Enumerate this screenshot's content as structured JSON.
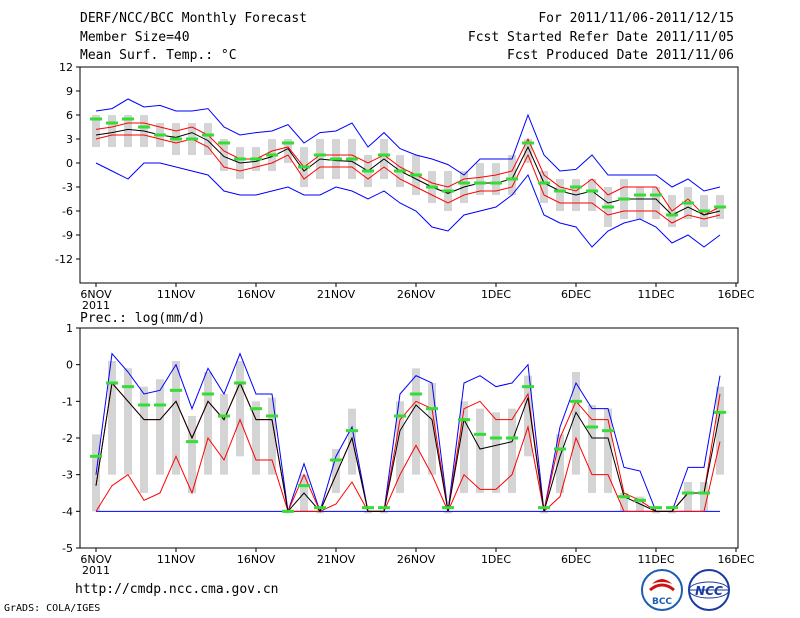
{
  "header": {
    "title": "DERF/NCC/BCC Monthly Forecast",
    "member_size": "Member Size=40",
    "variable": "Mean Surf. Temp.: °C",
    "period": "For 2011/11/06-2011/12/15",
    "started": "Fcst Started Refer Date 2011/11/05",
    "produced": "Fcst Produced Date 2011/11/06"
  },
  "footer": {
    "url": "http://cmdp.ncc.cma.gov.cn",
    "grads": "GrADS: COLA/IGES",
    "logo_bcc": "BCC",
    "logo_ncc": "NCC"
  },
  "colors": {
    "envelope": "#0000ff",
    "spread": "#ff0000",
    "mean": "#000000",
    "median": "#33dd33",
    "box": "#d4d4d4"
  },
  "chart_data": [
    {
      "type": "box",
      "title": "Mean Surf. Temp.: °C",
      "year_label": "2011",
      "x_tick_labels": [
        "6NOV",
        "11NOV",
        "16NOV",
        "21NOV",
        "26NOV",
        "1DEC",
        "6DEC",
        "11DEC",
        "16DEC"
      ],
      "x_tick_days": [
        0,
        5,
        10,
        15,
        20,
        25,
        30,
        35,
        40
      ],
      "ylim": [
        -15,
        12
      ],
      "y_ticks": [
        -12,
        -9,
        -6,
        -3,
        0,
        3,
        6,
        9,
        12
      ],
      "days": [
        0,
        1,
        2,
        3,
        4,
        5,
        6,
        7,
        8,
        9,
        10,
        11,
        12,
        13,
        14,
        15,
        16,
        17,
        18,
        19,
        20,
        21,
        22,
        23,
        24,
        25,
        26,
        27,
        28,
        29,
        30,
        31,
        32,
        33,
        34,
        35,
        36,
        37,
        38,
        39
      ],
      "series": [
        {
          "name": "max",
          "values": [
            6.5,
            6.8,
            8,
            7,
            7.2,
            6.5,
            6.5,
            6.8,
            4.5,
            3.5,
            3.8,
            4,
            4.8,
            2.5,
            3.8,
            4,
            5,
            2,
            3.8,
            1.8,
            1,
            0.5,
            -0.2,
            -1.5,
            0.5,
            0.5,
            0.5,
            6,
            1,
            -1,
            -0.8,
            1,
            -1.5,
            -1.5,
            -1.5,
            -1.5,
            -3,
            -2,
            -3.5,
            -3
          ]
        },
        {
          "name": "upper",
          "values": [
            4.2,
            4.5,
            5,
            5,
            4.5,
            4,
            4.5,
            3.5,
            1.5,
            0.5,
            0.5,
            1.5,
            2,
            -0.5,
            1,
            1,
            1,
            0,
            1,
            -0.5,
            -1.5,
            -2.5,
            -3,
            -2,
            -1.8,
            -1.5,
            -1,
            3,
            -1.5,
            -3,
            -3.5,
            -2,
            -4,
            -3,
            -3,
            -3,
            -6,
            -4.5,
            -6.5,
            -5.5
          ]
        },
        {
          "name": "mean",
          "values": [
            3.5,
            3.8,
            4.2,
            4,
            3.5,
            3.2,
            3.8,
            2.8,
            0.8,
            0,
            0.2,
            0.8,
            1.8,
            -1,
            0.5,
            0.3,
            0.2,
            -1,
            0.5,
            -1,
            -2,
            -3,
            -3.8,
            -3,
            -2.5,
            -2.5,
            -2,
            2,
            -2.5,
            -3.5,
            -4,
            -3.5,
            -5,
            -4.5,
            -4.5,
            -4.5,
            -6.5,
            -5.5,
            -6.5,
            -6
          ]
        },
        {
          "name": "lower",
          "values": [
            3,
            3.5,
            3.5,
            3.5,
            3,
            2.5,
            3,
            2,
            -0.5,
            -1,
            -0.5,
            0,
            1,
            -2,
            -0.5,
            -0.5,
            -0.5,
            -2,
            -0.5,
            -2,
            -3,
            -4,
            -5,
            -4,
            -3.5,
            -3.5,
            -3,
            1,
            -4,
            -5,
            -5,
            -5,
            -6.5,
            -6,
            -6,
            -6,
            -7.5,
            -6.5,
            -7,
            -6.5
          ]
        },
        {
          "name": "min",
          "values": [
            0,
            -1,
            -2,
            0,
            0,
            -0.5,
            -1,
            -1.5,
            -3.5,
            -4,
            -4,
            -3.5,
            -3,
            -4,
            -4,
            -3,
            -3.5,
            -4.5,
            -3.5,
            -5,
            -6,
            -8,
            -8.5,
            -6.5,
            -6,
            -5.5,
            -4,
            -1.5,
            -6.5,
            -7.5,
            -8,
            -10.5,
            -8.5,
            -7.5,
            -7,
            -8,
            -10,
            -9,
            -10.5,
            -9
          ]
        },
        {
          "name": "median",
          "values": [
            5.5,
            5,
            5.5,
            4.5,
            3.5,
            3,
            3,
            3.5,
            2.5,
            0.5,
            0.5,
            1,
            2.5,
            -0.5,
            1,
            0.5,
            0.5,
            -1,
            1,
            -1,
            -1.5,
            -3,
            -3.5,
            -2.5,
            -2.5,
            -2.5,
            -2,
            2.5,
            -2.5,
            -3.5,
            -3,
            -3.5,
            -5.5,
            -4.5,
            -4,
            -4,
            -6.5,
            -5,
            -6,
            -5.5
          ]
        },
        {
          "name": "box_high",
          "values": [
            6,
            6,
            6,
            6,
            5,
            5,
            5,
            5,
            3,
            2,
            2,
            3,
            3,
            2,
            3,
            3,
            3,
            1,
            3,
            1,
            1,
            -1,
            -1,
            -1,
            0,
            0,
            1,
            3,
            -1,
            -2,
            -2,
            -2,
            -3,
            -2,
            -3,
            -3,
            -4,
            -3,
            -4,
            -4
          ]
        },
        {
          "name": "box_low",
          "values": [
            2,
            2,
            2,
            2,
            2,
            1,
            1,
            1,
            -1,
            -2,
            -1,
            -1,
            0,
            -3,
            -2,
            -2,
            -2,
            -3,
            -2,
            -3,
            -4,
            -5,
            -6,
            -5,
            -4,
            -4,
            -4,
            0,
            -5,
            -6,
            -6,
            -6,
            -8,
            -7,
            -7,
            -7,
            -8,
            -7,
            -8,
            -7
          ]
        }
      ]
    },
    {
      "type": "box",
      "title": "Prec.: log(mm/d)",
      "year_label": "2011",
      "x_tick_labels": [
        "6NOV",
        "11NOV",
        "16NOV",
        "21NOV",
        "26NOV",
        "1DEC",
        "6DEC",
        "11DEC",
        "16DEC"
      ],
      "x_tick_days": [
        0,
        5,
        10,
        15,
        20,
        25,
        30,
        35,
        40
      ],
      "ylim": [
        -5,
        1
      ],
      "y_ticks": [
        -5,
        -4,
        -3,
        -2,
        -1,
        0,
        1
      ],
      "days": [
        0,
        1,
        2,
        3,
        4,
        5,
        6,
        7,
        8,
        9,
        10,
        11,
        12,
        13,
        14,
        15,
        16,
        17,
        18,
        19,
        20,
        21,
        22,
        23,
        24,
        25,
        26,
        27,
        28,
        29,
        30,
        31,
        32,
        33,
        34,
        35,
        36,
        37,
        38,
        39
      ],
      "series": [
        {
          "name": "max",
          "values": [
            -3,
            0.3,
            -0.2,
            -0.8,
            -0.7,
            0,
            -1.2,
            -0.1,
            -0.8,
            0.3,
            -0.8,
            -0.8,
            -4,
            -2.7,
            -4,
            -2.5,
            -1.7,
            -4,
            -4,
            -0.8,
            -0.3,
            -0.5,
            -4,
            -0.5,
            -0.3,
            -0.6,
            -0.5,
            0,
            -4,
            -1.7,
            -0.5,
            -1.2,
            -1.2,
            -2.8,
            -2.9,
            -4,
            -4,
            -2.8,
            -2.8,
            -0.3
          ]
        },
        {
          "name": "upper",
          "values": [
            -3.3,
            -0.5,
            -1,
            -1.5,
            -1.5,
            -1,
            -2,
            -1,
            -1.5,
            -0.5,
            -1.5,
            -1.5,
            -4,
            -3,
            -4,
            -3,
            -2,
            -4,
            -4,
            -1.5,
            -1,
            -1.2,
            -4,
            -1.2,
            -1,
            -1.5,
            -1.5,
            -0.8,
            -4,
            -2,
            -1,
            -1.5,
            -1.5,
            -3.5,
            -3.7,
            -4,
            -4,
            -3.5,
            -3.5,
            -0.8
          ]
        },
        {
          "name": "mean",
          "values": [
            -3.3,
            -0.5,
            -1,
            -1.5,
            -1.5,
            -1,
            -2,
            -1,
            -1.5,
            -0.5,
            -1.5,
            -1.5,
            -4,
            -3.5,
            -4,
            -3,
            -2,
            -4,
            -4,
            -1.8,
            -1.1,
            -1.5,
            -4,
            -1.5,
            -2.3,
            -2.2,
            -2.1,
            -0.9,
            -4,
            -2.5,
            -1.3,
            -2,
            -2,
            -3.6,
            -3.8,
            -4,
            -4,
            -3.5,
            -3.5,
            -1.3
          ]
        },
        {
          "name": "lower",
          "values": [
            -4,
            -3.3,
            -3,
            -3.7,
            -3.5,
            -2.5,
            -3.5,
            -2,
            -2.6,
            -1.5,
            -2.6,
            -2.6,
            -4,
            -4,
            -4,
            -3.8,
            -3.2,
            -4,
            -4,
            -3,
            -2.2,
            -3,
            -4,
            -3,
            -3.4,
            -3.4,
            -3,
            -1.7,
            -4,
            -3.6,
            -2,
            -3,
            -3,
            -4,
            -4,
            -4,
            -4,
            -4,
            -4,
            -2.1
          ]
        },
        {
          "name": "min",
          "values": [
            -4,
            -4,
            -4,
            -4,
            -4,
            -4,
            -4,
            -4,
            -4,
            -4,
            -4,
            -4,
            -4,
            -4,
            -4,
            -4,
            -4,
            -4,
            -4,
            -4,
            -4,
            -4,
            -4,
            -4,
            -4,
            -4,
            -4,
            -4,
            -4,
            -4,
            -4,
            -4,
            -4,
            -4,
            -4,
            -4,
            -4,
            -4,
            -4,
            -4
          ]
        },
        {
          "name": "median",
          "values": [
            -2.5,
            -0.5,
            -0.6,
            -1.1,
            -1.1,
            -0.7,
            -2.1,
            -0.8,
            -1.4,
            -0.5,
            -1.2,
            -1.4,
            -4,
            -3.3,
            -3.9,
            -2.6,
            -1.8,
            -3.9,
            -3.9,
            -1.4,
            -0.8,
            -1.2,
            -3.9,
            -1.5,
            -1.9,
            -2,
            -2,
            -0.6,
            -3.9,
            -2.3,
            -1,
            -1.7,
            -1.8,
            -3.6,
            -3.7,
            -3.9,
            -3.9,
            -3.5,
            -3.5,
            -1.3
          ]
        },
        {
          "name": "box_high",
          "values": [
            -1.9,
            0.1,
            -0.1,
            -0.6,
            -0.4,
            0.1,
            -1.4,
            -0.2,
            -0.8,
            0.1,
            -1,
            -0.9,
            -4,
            -3,
            -4,
            -2.3,
            -1.2,
            -4,
            -4,
            -1,
            -0.1,
            -0.5,
            -4,
            -1,
            -1.2,
            -1.3,
            -1.2,
            -0.3,
            -4,
            -1.9,
            -0.2,
            -1.1,
            -1.2,
            -3.5,
            -3.6,
            -4,
            -4,
            -3.2,
            -3.2,
            -0.6
          ]
        },
        {
          "name": "box_low",
          "values": [
            -4,
            -3,
            -3,
            -3.5,
            -3,
            -3,
            -3.5,
            -3,
            -3,
            -2.5,
            -3,
            -3,
            -4,
            -4,
            -4,
            -3.5,
            -3,
            -4,
            -4,
            -3.5,
            -3,
            -3,
            -4,
            -3.5,
            -3.5,
            -3.5,
            -3.5,
            -2.5,
            -4,
            -3.5,
            -3,
            -3.5,
            -3.5,
            -4,
            -4,
            -4,
            -4,
            -4,
            -4,
            -3
          ]
        }
      ]
    }
  ]
}
